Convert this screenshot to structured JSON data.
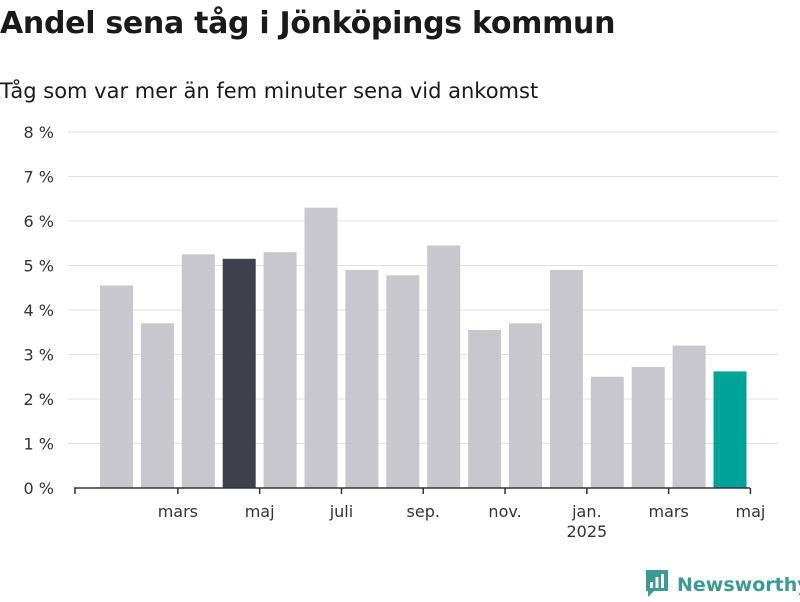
{
  "chart_data": {
    "type": "bar",
    "title": "Andel sena tåg i Jönköpings kommun",
    "subtitle": "Tåg som var mer än fem minuter sena vid ankomst",
    "xlabel": "",
    "ylabel": "",
    "ylim": [
      0,
      8
    ],
    "y_ticks": [
      "0 %",
      "1 %",
      "2 %",
      "3 %",
      "4 %",
      "5 %",
      "6 %",
      "7 %",
      "8 %"
    ],
    "x_tick_labels": [
      {
        "label": "mars",
        "bar_index": 1
      },
      {
        "label": "maj",
        "bar_index": 3
      },
      {
        "label": "juli",
        "bar_index": 5
      },
      {
        "label": "sep.",
        "bar_index": 7
      },
      {
        "label": "nov.",
        "bar_index": 9
      },
      {
        "label": "jan.",
        "sublabel": "2025",
        "bar_index": 11
      },
      {
        "label": "mars",
        "bar_index": 13
      },
      {
        "label": "maj",
        "bar_index": 15
      }
    ],
    "values": [
      4.55,
      3.7,
      5.25,
      5.15,
      5.3,
      6.3,
      4.9,
      4.78,
      5.45,
      3.55,
      3.7,
      4.9,
      2.5,
      2.72,
      3.2,
      2.62
    ],
    "highlights": {
      "3": "dark",
      "15": "accent"
    },
    "grid": true,
    "legend": "none"
  },
  "colors": {
    "bar": "#c8c7cd",
    "dark": "#40404c",
    "accent": "#00a398",
    "grid": "#e2e2e2",
    "axis": "#333333",
    "brand": "#3b9b93"
  },
  "brand": {
    "name": "Newsworthy",
    "icon": "newsworthy-logo-icon"
  }
}
